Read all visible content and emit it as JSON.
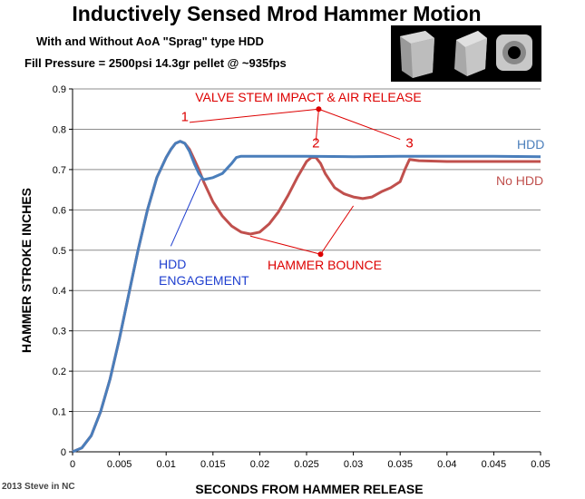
{
  "header": {
    "title": "Inductively Sensed Mrod Hammer Motion",
    "subtitle": "With and Without AoA \"Sprag\" type HDD",
    "conditions": "Fill Pressure = 2500psi     14.3gr pellet @ ~935fps"
  },
  "credit": "2013 Steve in NC",
  "colors": {
    "hdd": "#4a7ebb",
    "no_hdd": "#c0504d",
    "annotation_red": "#dd0000",
    "annotation_blue": "#1f3fcf"
  },
  "chart_data": {
    "type": "line",
    "title": "Inductively Sensed Mrod Hammer Motion",
    "xlabel": "SECONDS FROM  HAMMER RELEASE",
    "ylabel": "HAMMER STROKE INCHES",
    "xlim": [
      0,
      0.05
    ],
    "ylim": [
      0,
      0.9
    ],
    "xticks": [
      "0",
      "0.005",
      "0.01",
      "0.015",
      "0.02",
      "0.025",
      "0.03",
      "0.035",
      "0.04",
      "0.045",
      "0.05"
    ],
    "yticks": [
      "0",
      "0.1",
      "0.2",
      "0.3",
      "0.4",
      "0.5",
      "0.6",
      "0.7",
      "0.8",
      "0.9"
    ],
    "grid": "horizontal",
    "series": [
      {
        "name": "HDD",
        "color": "#4a7ebb",
        "x": [
          0,
          0.001,
          0.002,
          0.003,
          0.004,
          0.005,
          0.006,
          0.007,
          0.008,
          0.009,
          0.01,
          0.0105,
          0.011,
          0.0115,
          0.012,
          0.0125,
          0.013,
          0.0135,
          0.014,
          0.015,
          0.016,
          0.017,
          0.0175,
          0.018,
          0.019,
          0.02,
          0.025,
          0.03,
          0.035,
          0.04,
          0.045,
          0.05
        ],
        "values": [
          0,
          0.01,
          0.04,
          0.1,
          0.18,
          0.28,
          0.39,
          0.5,
          0.6,
          0.68,
          0.73,
          0.75,
          0.765,
          0.77,
          0.765,
          0.745,
          0.715,
          0.69,
          0.675,
          0.68,
          0.69,
          0.715,
          0.73,
          0.733,
          0.733,
          0.733,
          0.733,
          0.732,
          0.733,
          0.733,
          0.733,
          0.732
        ]
      },
      {
        "name": "No HDD",
        "color": "#c0504d",
        "x": [
          0,
          0.001,
          0.002,
          0.003,
          0.004,
          0.005,
          0.006,
          0.007,
          0.008,
          0.009,
          0.01,
          0.0105,
          0.011,
          0.0115,
          0.012,
          0.0125,
          0.013,
          0.0135,
          0.014,
          0.015,
          0.016,
          0.017,
          0.018,
          0.019,
          0.02,
          0.021,
          0.022,
          0.023,
          0.024,
          0.025,
          0.0255,
          0.026,
          0.0265,
          0.027,
          0.028,
          0.029,
          0.03,
          0.031,
          0.032,
          0.033,
          0.034,
          0.035,
          0.0355,
          0.036,
          0.037,
          0.04,
          0.045,
          0.05
        ],
        "values": [
          0,
          0.01,
          0.04,
          0.1,
          0.18,
          0.28,
          0.39,
          0.5,
          0.6,
          0.68,
          0.73,
          0.75,
          0.765,
          0.77,
          0.765,
          0.75,
          0.725,
          0.7,
          0.67,
          0.62,
          0.585,
          0.56,
          0.545,
          0.54,
          0.545,
          0.565,
          0.595,
          0.635,
          0.68,
          0.72,
          0.73,
          0.73,
          0.715,
          0.69,
          0.655,
          0.64,
          0.632,
          0.628,
          0.632,
          0.645,
          0.655,
          0.67,
          0.7,
          0.725,
          0.722,
          0.72,
          0.72,
          0.72
        ]
      }
    ],
    "legend_labels": [
      {
        "text": "HDD",
        "series": "HDD"
      },
      {
        "text": "No HDD",
        "series": "No HDD"
      }
    ],
    "annotations": {
      "valve": {
        "text": "VALVE STEM IMPACT & AIR RELEASE",
        "dot": [
          0.0263,
          0.85
        ],
        "targets": [
          [
            0.0125,
            0.817
          ],
          [
            0.026,
            0.77
          ],
          [
            0.035,
            0.775
          ]
        ]
      },
      "numbers": [
        {
          "text": "1",
          "at": [
            0.012,
            0.82
          ]
        },
        {
          "text": "2",
          "at": [
            0.026,
            0.755
          ]
        },
        {
          "text": "3",
          "at": [
            0.036,
            0.755
          ]
        }
      ],
      "bounce": {
        "text": "HAMMER BOUNCE",
        "dot": [
          0.0265,
          0.49
        ],
        "targets": [
          [
            0.019,
            0.535
          ],
          [
            0.03,
            0.61
          ]
        ]
      },
      "hdd_engagement": {
        "line1": "HDD",
        "line2": "ENGAGEMENT",
        "from": [
          0.0105,
          0.51
        ],
        "to": [
          0.0137,
          0.677
        ]
      }
    }
  }
}
